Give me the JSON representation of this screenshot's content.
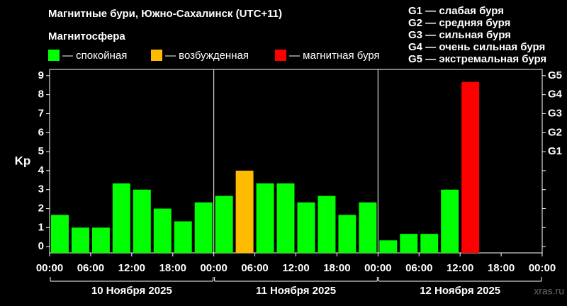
{
  "chart_data": {
    "type": "bar",
    "title": "Магнитные бури, Южно-Сахалинск (UTC+11)",
    "subtitle": "Магнитосфера",
    "y_label": "Kp",
    "legend": [
      {
        "name": "— спокойная",
        "color": "#00ff00"
      },
      {
        "name": "— возбужденная",
        "color": "#ffbb00"
      },
      {
        "name": "— магнитная буря",
        "color": "#ff0000"
      }
    ],
    "storm_scale": [
      "G1 — слабая буря",
      "G2 — средняя буря",
      "G3 — сильная буря",
      "G4 — очень сильная буря",
      "G5 — экстремальная буря"
    ],
    "categories": [
      null,
      null,
      null,
      null,
      null,
      null,
      null,
      null,
      null,
      null,
      null,
      null,
      null,
      null,
      null,
      null,
      null,
      null,
      null,
      null,
      null,
      null,
      null,
      null
    ],
    "values": [
      1.67,
      1,
      1,
      3.33,
      3,
      2,
      1.33,
      2.33,
      2.67,
      4,
      3.33,
      3.33,
      2.33,
      2.67,
      1.67,
      2.33,
      0.33,
      0.67,
      0.67,
      3,
      8.67,
      null,
      null,
      null
    ],
    "colors": [
      "#00ff00",
      "#00ff00",
      "#00ff00",
      "#00ff00",
      "#00ff00",
      "#00ff00",
      "#00ff00",
      "#00ff00",
      "#00ff00",
      "#ffbb00",
      "#00ff00",
      "#00ff00",
      "#00ff00",
      "#00ff00",
      "#00ff00",
      "#00ff00",
      "#00ff00",
      "#00ff00",
      "#00ff00",
      "#00ff00",
      "#ff0000",
      null,
      null,
      null
    ],
    "xtick_labels": [
      "00:00",
      "06:00",
      "12:00",
      "18:00",
      "00:00",
      "06:00",
      "12:00",
      "18:00",
      "00:00",
      "06:00",
      "12:00",
      "18:00",
      "00:00"
    ],
    "day_labels": [
      "10 Ноября 2025",
      "11 Ноября 2025",
      "12 Ноября 2025"
    ],
    "ylim": [
      -0.33,
      9.33
    ],
    "yticks": [
      0,
      1,
      2,
      3,
      4,
      5,
      6,
      7,
      8,
      9
    ],
    "y2lim": [
      -0.33,
      9.33
    ],
    "y2ticks": [
      {
        "value": 5,
        "label": "G1"
      },
      {
        "value": 6,
        "label": "G2"
      },
      {
        "value": 7,
        "label": "G3"
      },
      {
        "value": 8,
        "label": "G4"
      },
      {
        "value": 9,
        "label": "G5"
      }
    ],
    "watermark": "xras.ru"
  }
}
